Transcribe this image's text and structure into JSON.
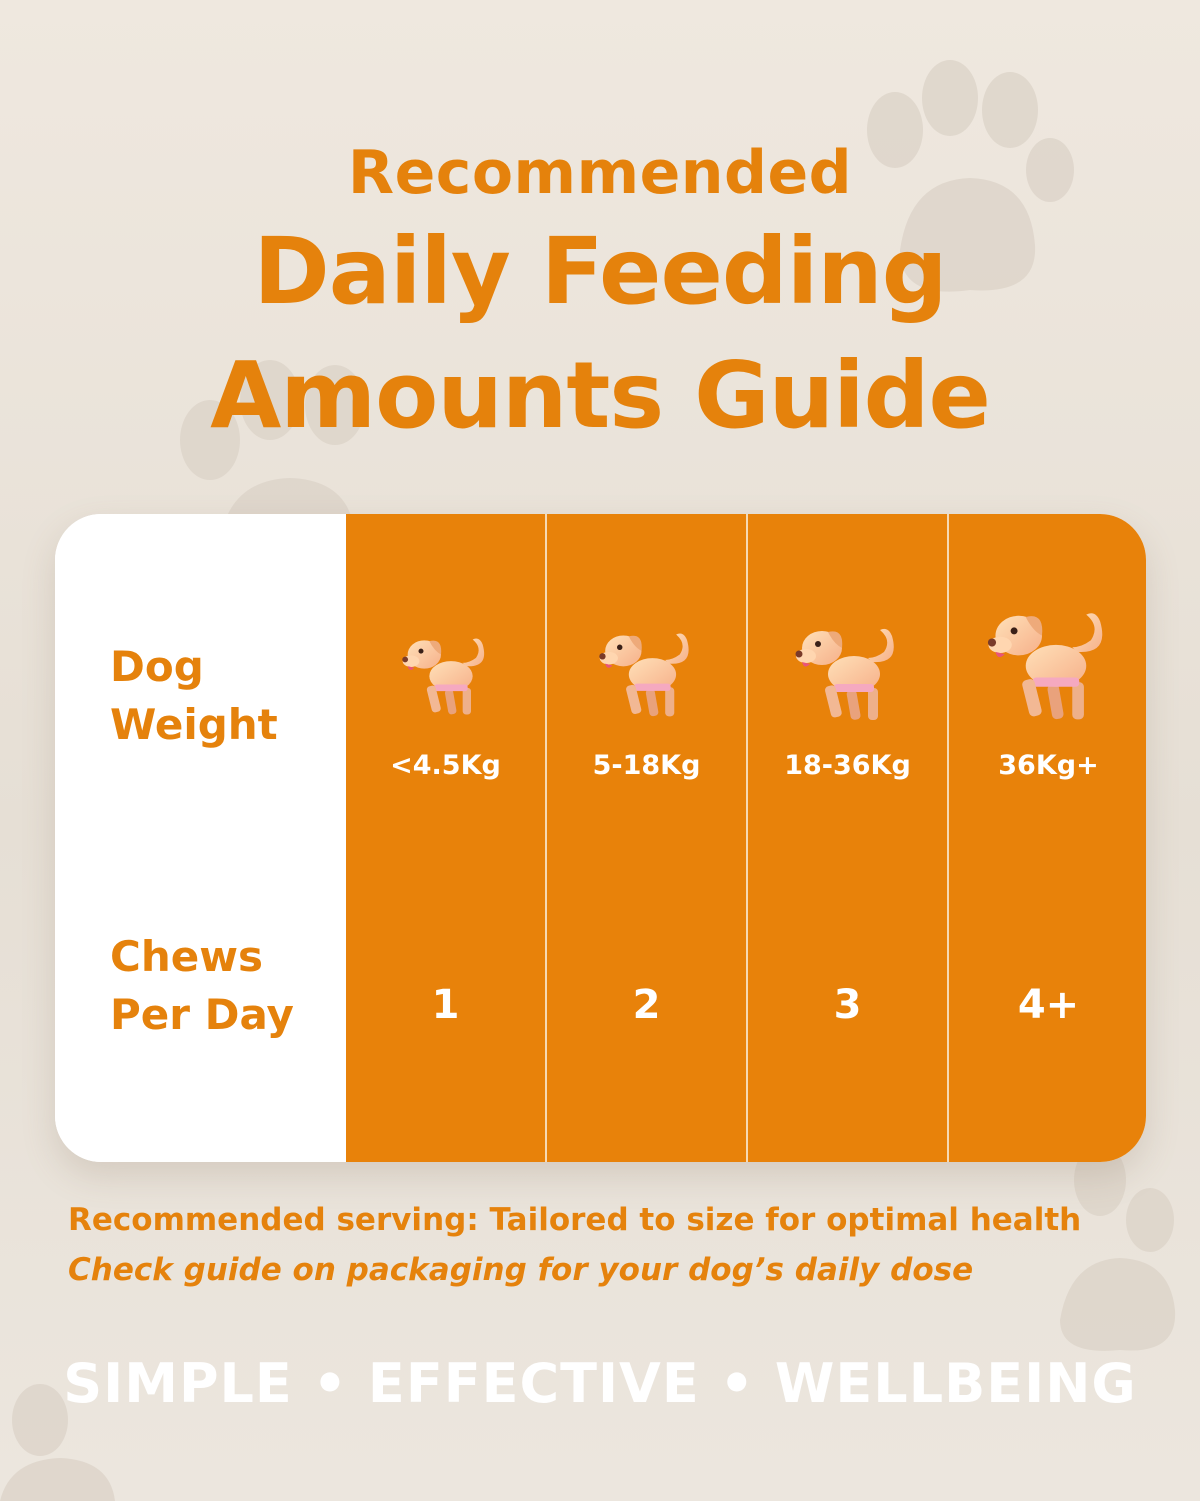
{
  "header": {
    "subtitle": "Recommended",
    "title_line1": "Daily Feeding",
    "title_line2": "Amounts Guide"
  },
  "table": {
    "row_labels": {
      "weight_line1": "Dog",
      "weight_line2": "Weight",
      "chews_line1": "Chews",
      "chews_line2": "Per Day"
    },
    "columns": [
      {
        "icon": "dog-icon",
        "weight": "<4.5Kg",
        "chews": "1"
      },
      {
        "icon": "dog-icon",
        "weight": "5-18Kg",
        "chews": "2"
      },
      {
        "icon": "dog-icon",
        "weight": "18-36Kg",
        "chews": "3"
      },
      {
        "icon": "dog-icon",
        "weight": "36Kg+",
        "chews": "4+"
      }
    ]
  },
  "notes": {
    "line1": "Recommended serving: Tailored to size for optimal health",
    "line2": "Check guide on packaging for your dog’s daily dose"
  },
  "tagline": "SIMPLE • EFFECTIVE • WELLBEING",
  "colors": {
    "accent": "#e5820c",
    "background": "#efe8df",
    "white": "#ffffff"
  }
}
